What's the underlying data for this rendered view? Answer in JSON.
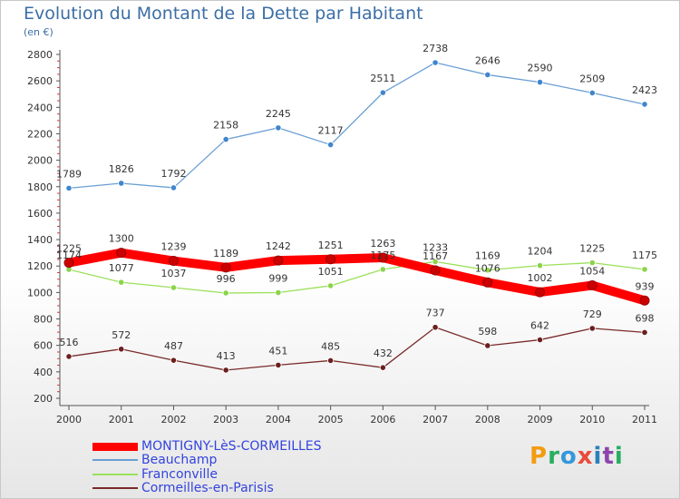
{
  "header": {
    "title": "Evolution du Montant de la Dette par Habitant",
    "subtitle": "(en €)"
  },
  "logo": {
    "letters": [
      "P",
      "r",
      "o",
      "x",
      "i",
      "t",
      "i"
    ],
    "colors": [
      "#f39c12",
      "#27ae60",
      "#3498db",
      "#e74c3c",
      "#2980b9",
      "#8e44ad",
      "#27ae60"
    ]
  },
  "chart_data": {
    "type": "line",
    "x": [
      "2000",
      "2001",
      "2002",
      "2003",
      "2004",
      "2005",
      "2006",
      "2007",
      "2008",
      "2009",
      "2010",
      "2011"
    ],
    "ylim": [
      200,
      2800
    ],
    "yticks": [
      200,
      400,
      600,
      800,
      1000,
      1200,
      1400,
      1600,
      1800,
      2000,
      2200,
      2400,
      2600,
      2800
    ],
    "grid": false,
    "legend_position": "bottom-left",
    "series": [
      {
        "name": "MONTIGNY-LèS-CORMEILLES",
        "color": "#ff0000",
        "marker": "#cc0000",
        "values": [
          1225,
          1300,
          1239,
          1189,
          1242,
          1251,
          1263,
          1167,
          1076,
          1002,
          1054,
          939
        ]
      },
      {
        "name": "Beauchamp",
        "color": "#6a9fd4",
        "marker": "#3f86cc",
        "values": [
          1789,
          1826,
          1792,
          2158,
          2245,
          2117,
          2511,
          2738,
          2646,
          2590,
          2509,
          2423
        ]
      },
      {
        "name": "Franconville",
        "color": "#9be05a",
        "marker": "#8ad44a",
        "values": [
          1174,
          1077,
          1037,
          996,
          999,
          1051,
          1175,
          1233,
          1169,
          1204,
          1225,
          1175
        ]
      },
      {
        "name": "Cormeilles-en-Parisis",
        "color": "#7a2a2a",
        "marker": "#6b1f1f",
        "values": [
          516,
          572,
          487,
          413,
          451,
          485,
          432,
          737,
          598,
          642,
          729,
          698
        ]
      }
    ]
  }
}
